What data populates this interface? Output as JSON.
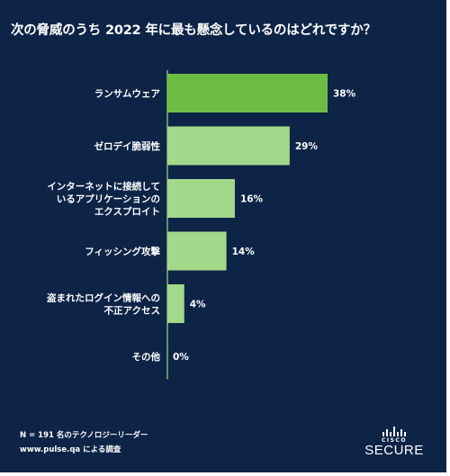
{
  "colors": {
    "background": "#0d2447",
    "bar_top": "#6dbd44",
    "bar_other": "#a3d88a",
    "axis": "#a3d88a",
    "text": "#ffffff"
  },
  "chart_data": {
    "type": "bar",
    "orientation": "horizontal",
    "title": "次の脅威のうち 2022 年に最も懸念しているのはどれですか？",
    "categories": [
      [
        "ランサムウェア"
      ],
      [
        "ゼロデイ脆弱性"
      ],
      [
        "インターネットに接続して",
        "いるアプリケーションの",
        "エクスプロイト"
      ],
      [
        "フィッシング攻撃"
      ],
      [
        "盗まれたログイン情報への",
        "不正アクセス"
      ],
      [
        "その他"
      ]
    ],
    "values": [
      38,
      29,
      16,
      14,
      4,
      0
    ],
    "value_labels": [
      "38%",
      "29%",
      "16%",
      "14%",
      "4%",
      "0%"
    ],
    "unit": "%",
    "xlim": [
      0,
      40
    ],
    "grid": false,
    "legend": "none"
  },
  "footer": {
    "sample": "N = 191 名のテクノロジーリーダー",
    "source": "www.pulse.qa による調査"
  },
  "brand": {
    "logo": "cisco-logo-icon",
    "company": "CISCO",
    "product": "SECURE"
  }
}
